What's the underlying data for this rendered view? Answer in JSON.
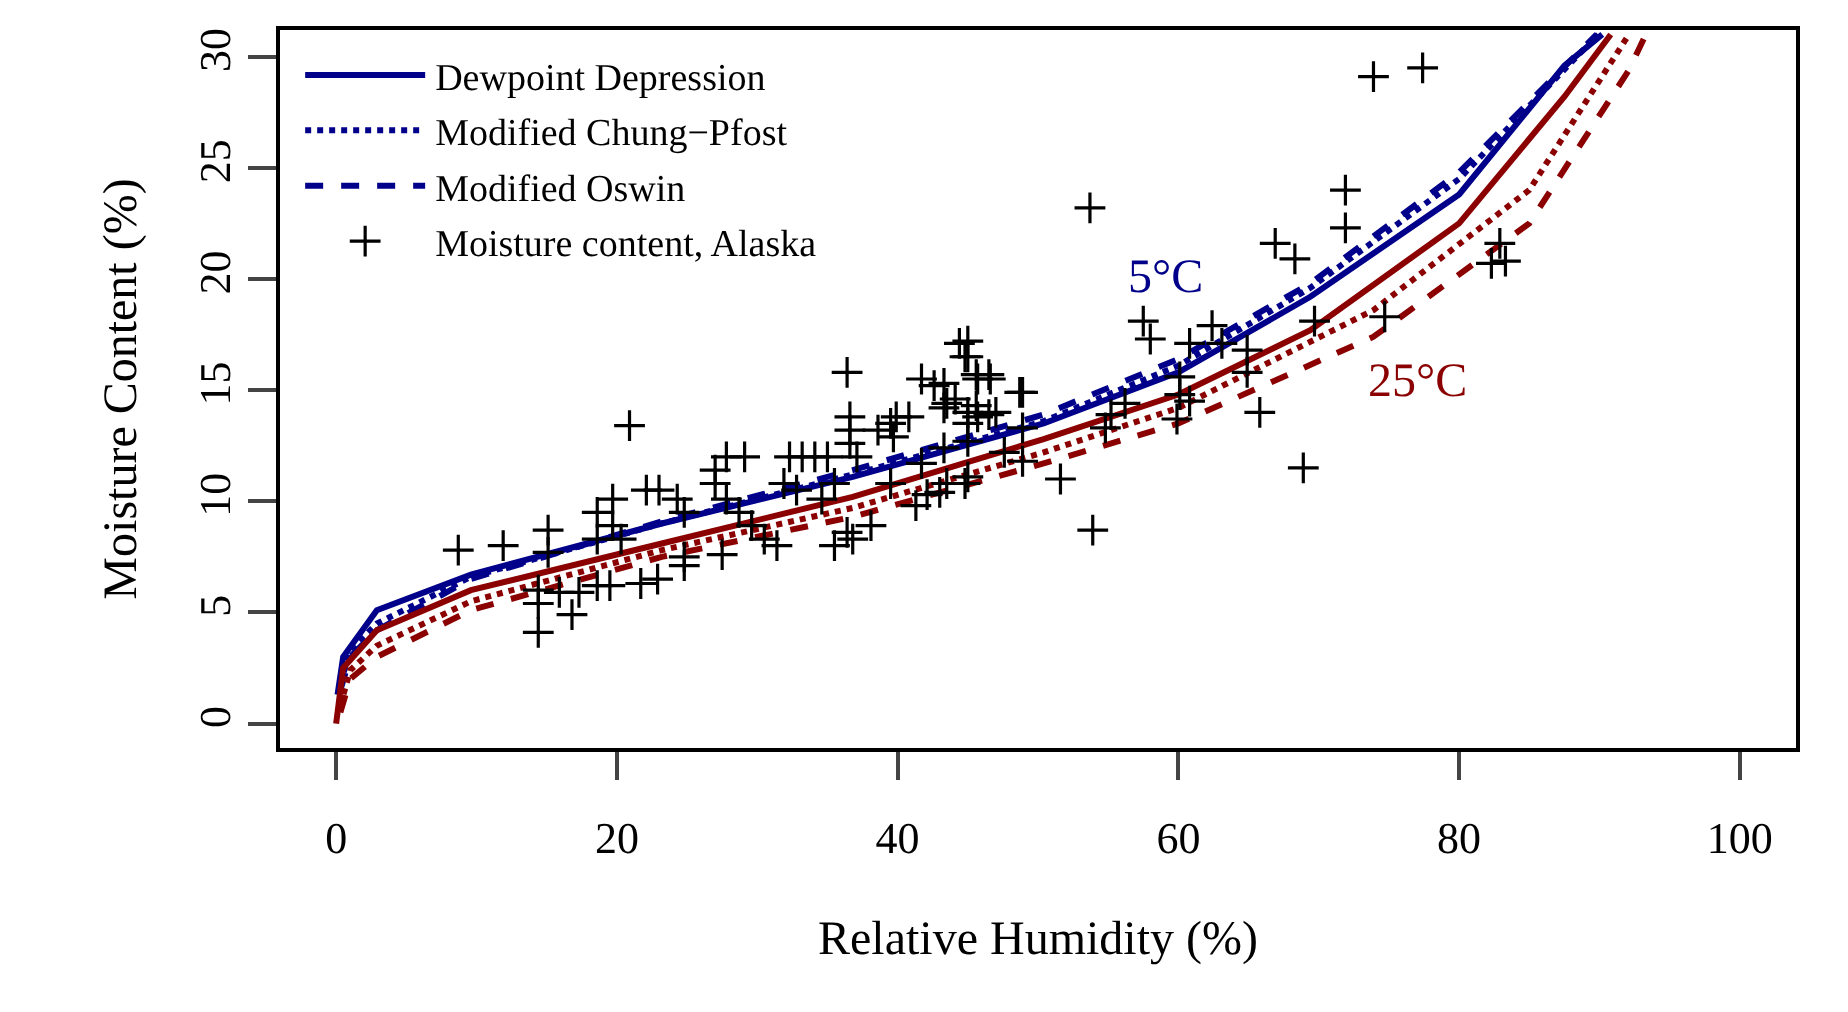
{
  "chart_data": {
    "type": "line",
    "xlabel": "Relative Humidity (%)",
    "ylabel": "Moisture Content (%)",
    "xlim": [
      -4,
      104
    ],
    "ylim": [
      -1.1,
      31.2
    ],
    "xticks": [
      0,
      20,
      40,
      60,
      80,
      100
    ],
    "yticks": [
      0,
      5,
      10,
      15,
      20,
      25,
      30
    ],
    "legend": "top left",
    "annotations": [
      "5°C",
      "25°C"
    ],
    "series": [
      {
        "name": "Dewpoint Depression",
        "line_style": "solid",
        "color": "#00008b",
        "x": [
          0.1,
          0.5,
          2.9,
          9.6,
          23.2,
          36.8,
          50.4,
          60,
          69.4,
          80,
          87.5,
          90.2
        ],
        "values": [
          1.3,
          3.0,
          5.1,
          6.7,
          9.0,
          11.1,
          13.5,
          15.8,
          19.2,
          23.8,
          29.6,
          31
        ]
      },
      {
        "name": "Modified Chung−Pfost",
        "line_style": "dotted",
        "color": "#00008b",
        "x": [
          0.3,
          1,
          2.9,
          9.6,
          23.2,
          36.8,
          50.4,
          60,
          69.4,
          80,
          89.9
        ],
        "values": [
          1.8,
          3.3,
          4.5,
          6.6,
          9.0,
          11.2,
          13.6,
          16.1,
          19.6,
          24.5,
          31
        ]
      },
      {
        "name": "Modified Oswin",
        "line_style": "dashed",
        "color": "#00008b",
        "x": [
          0.3,
          1,
          2.9,
          9.6,
          23.2,
          36.8,
          50.4,
          60,
          69.4,
          80,
          89.8
        ],
        "values": [
          1.5,
          3.0,
          4.2,
          6.5,
          9.1,
          11.4,
          13.9,
          16.4,
          19.8,
          24.8,
          31
        ]
      },
      {
        "line_style": "solid",
        "color": "#8b0000",
        "x": [
          0,
          0.5,
          2.9,
          9.6,
          23.2,
          36.8,
          50.4,
          60,
          69.4,
          80,
          87.5,
          90.8
        ],
        "values": [
          0,
          2.5,
          4.2,
          6.0,
          8.1,
          10.2,
          12.8,
          14.8,
          17.7,
          22.5,
          28.2,
          31
        ]
      },
      {
        "line_style": "dotted",
        "color": "#8b0000",
        "x": [
          0.3,
          1,
          2.9,
          9.6,
          23.2,
          36.8,
          50.4,
          60,
          73.9,
          85,
          92.1
        ],
        "values": [
          0.8,
          2.4,
          3.5,
          5.5,
          7.8,
          9.7,
          12.2,
          14.2,
          18.6,
          24,
          31
        ]
      },
      {
        "line_style": "dashed",
        "color": "#8b0000",
        "x": [
          0.3,
          1,
          2.9,
          9.6,
          23.2,
          36.8,
          50.4,
          60,
          73.9,
          85,
          92.1,
          93.3
        ],
        "values": [
          0.5,
          2.0,
          3.0,
          5.1,
          7.5,
          9.3,
          11.7,
          13.5,
          17.4,
          22.5,
          29.4,
          31
        ]
      },
      {
        "name": "Moisture content, Alaska",
        "type": "scatter",
        "marker": "cross",
        "color": "#000000",
        "x": [
          73.9,
          77.4,
          53.7,
          71.9,
          71.9,
          66.9,
          68.3,
          82.9,
          82.3,
          83.3,
          57.5,
          58,
          62.4,
          60.8,
          63.1,
          64.9,
          64.9,
          69.7,
          74.7,
          60.1,
          60.1,
          60.8,
          59.9,
          65.8,
          68.9,
          53.9,
          51.6,
          48.9,
          48.9,
          48.9,
          45,
          45,
          45.6,
          46.5,
          43.3,
          44.1,
          43.3,
          45,
          45,
          45.6,
          46.5,
          45,
          43.3,
          45,
          43.5,
          47.6,
          55.2,
          54.8,
          56.2,
          20.9,
          8.7,
          11.9,
          14.4,
          14.4,
          14.4,
          15.1,
          15.1,
          16.8,
          15.9,
          17.3,
          18.6,
          19.5,
          21.7,
          22.9,
          18.6,
          19.7,
          19.7,
          18.6,
          20.3,
          22.1,
          23,
          24.3,
          24.8,
          24.8,
          24.8,
          27.5,
          27.8,
          29.1,
          27,
          27,
          27.8,
          28.7,
          29.6,
          30.5,
          31.4,
          32.3,
          33.2,
          34.1,
          35,
          31.9,
          32.8,
          34.6,
          35.5,
          36.4,
          36.6,
          36.6,
          36.6,
          37.1,
          35.5,
          36.4,
          36.8,
          38.1,
          38.6,
          39.7,
          39.5,
          39.9,
          40.8,
          41.7,
          42.6,
          43.5,
          41.3,
          42.1,
          43,
          44.8,
          41.7,
          39.5,
          44.4,
          44.8,
          45.7,
          46.6,
          48.7,
          45.7,
          47
        ],
        "values": [
          29.1,
          29.5,
          23.2,
          24.0,
          22.3,
          21.6,
          20.9,
          21.6,
          20.7,
          20.8,
          18.1,
          17.3,
          17.9,
          17.1,
          17.1,
          16.8,
          15.8,
          18.1,
          18.3,
          15.6,
          14.8,
          14.5,
          13.7,
          14.0,
          11.5,
          8.7,
          11.0,
          14.9,
          13.3,
          11.8,
          17.2,
          16.5,
          15.7,
          15.7,
          15.3,
          14.6,
          14.2,
          14.0,
          13.5,
          14.3,
          13.9,
          12.7,
          12.4,
          11.1,
          10.8,
          12.2,
          13.9,
          13.3,
          14.4,
          13.4,
          7.8,
          8.0,
          4.1,
          5.4,
          6.0,
          8.7,
          7.7,
          4.9,
          5.9,
          5.9,
          6.2,
          6.2,
          6.3,
          6.5,
          9.5,
          10.1,
          8.9,
          8.3,
          8.3,
          10.5,
          10.5,
          10.1,
          9.5,
          7.5,
          7.1,
          7.6,
          12.0,
          12.0,
          11.4,
          10.8,
          10.1,
          9.5,
          8.9,
          8.3,
          8.0,
          12.0,
          12.0,
          12.0,
          12.0,
          10.8,
          10.5,
          10.1,
          10.8,
          15.8,
          13.8,
          13.2,
          12.6,
          12.0,
          8.0,
          8.6,
          8.3,
          8.9,
          13.2,
          12.9,
          13.5,
          13.8,
          13.8,
          15.5,
          15.2,
          14.4,
          9.8,
          10.3,
          10.4,
          10.8,
          11.7,
          10.8,
          17.1,
          16.5,
          15.5,
          15.5,
          14.9,
          13.8,
          14.0
        ]
      }
    ]
  }
}
